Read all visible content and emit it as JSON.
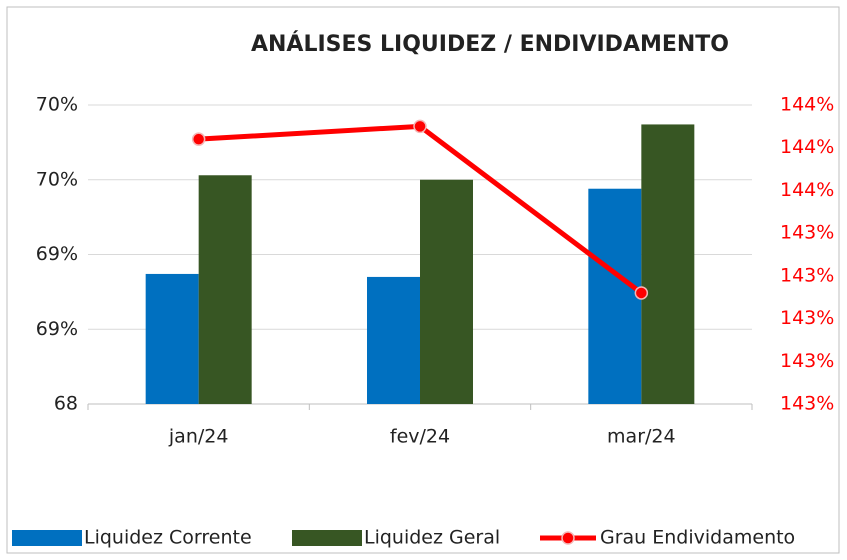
{
  "chart_data": {
    "type": "bar",
    "title": "ANÁLISES LIQUIDEZ / ENDIVIDAMENTO",
    "categories": [
      "jan/24",
      "fev/24",
      "mar/24"
    ],
    "series": [
      {
        "name": "Liquidez Corrente",
        "color": "#0070c0",
        "type": "bar",
        "values": [
          68.87,
          68.85,
          69.44
        ]
      },
      {
        "name": "Liquidez Geral",
        "color": "#375623",
        "type": "bar",
        "values": [
          69.53,
          69.5,
          69.87
        ]
      },
      {
        "name": "Grau Endividamento",
        "color": "#ff0000",
        "type": "line",
        "axis": "y2",
        "values": [
          143.62,
          143.65,
          143.26
        ]
      }
    ],
    "ylim": [
      68,
      70
    ],
    "yticks": [
      68,
      {
        "value": 68.5,
        "label": "69%"
      },
      {
        "value": 69,
        "label": "69%"
      },
      {
        "value": 69.5,
        "label": "70%"
      },
      {
        "value": 70,
        "label": "70%"
      }
    ],
    "y2lim": [
      143.0,
      143.7
    ],
    "y2ticks": [
      {
        "value": 143.0,
        "label": "143%"
      },
      {
        "value": 143.1,
        "label": "143%"
      },
      {
        "value": 143.2,
        "label": "143%"
      },
      {
        "value": 143.3,
        "label": "143%"
      },
      {
        "value": 143.4,
        "label": "143%"
      },
      {
        "value": 143.5,
        "label": "144%"
      },
      {
        "value": 143.6,
        "label": "144%"
      },
      {
        "value": 143.7,
        "label": "144%"
      }
    ],
    "grid": true,
    "legend": "bottom"
  }
}
